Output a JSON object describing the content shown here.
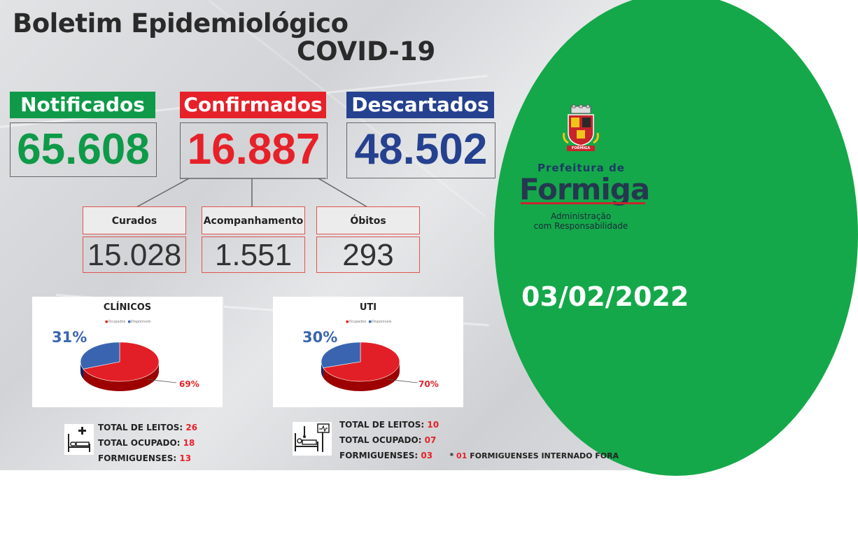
{
  "header": {
    "title_line1": "Boletim Epidemiológico",
    "title_line2": "COVID-19"
  },
  "summary": {
    "notificados": {
      "label": "Notificados",
      "value": "65.608",
      "color": "#0e9a48"
    },
    "confirmados": {
      "label": "Confirmados",
      "value": "16.887",
      "color": "#e62129"
    },
    "descartados": {
      "label": "Descartados",
      "value": "48.502",
      "color": "#25418f"
    }
  },
  "breakdown": {
    "curados": {
      "label": "Curados",
      "value": "15.028"
    },
    "acompanhamento": {
      "label": "Acompanhamento",
      "value": "1.551"
    },
    "obitos": {
      "label": "Óbitos",
      "value": "293"
    }
  },
  "chart_data": [
    {
      "type": "pie",
      "title": "CLÍNICOS",
      "categories": [
        "Ocupados",
        "Disponíveis"
      ],
      "values": [
        69,
        31
      ],
      "labels": [
        "69%",
        "31%"
      ],
      "colors": [
        "#e21f26",
        "#3a64b0"
      ],
      "legend_position": "top"
    },
    {
      "type": "pie",
      "title": "UTI",
      "categories": [
        "Ocupados",
        "Disponíveis"
      ],
      "values": [
        70,
        30
      ],
      "labels": [
        "70%",
        "30%"
      ],
      "colors": [
        "#e21f26",
        "#3a64b0"
      ],
      "legend_position": "top"
    }
  ],
  "clinicos_stats": {
    "total_leitos_label": "TOTAL DE LEITOS:",
    "total_leitos": "26",
    "total_ocupado_label": "TOTAL OCUPADO:",
    "total_ocupado": "18",
    "formiguenses_label": "FORMIGUENSES:",
    "formiguenses": "13"
  },
  "uti_stats": {
    "total_leitos_label": "TOTAL DE LEITOS:",
    "total_leitos": "10",
    "total_ocupado_label": "TOTAL OCUPADO:",
    "total_ocupado": "07",
    "formiguenses_label": "FORMIGUENSES:",
    "formiguenses": "03",
    "note_prefix": "*",
    "note_value": "01",
    "note_text": "FORMIGUENSES INTERNADO FORA"
  },
  "logo": {
    "line1": "Prefeitura de",
    "line2": "Formiga",
    "line3": "Administração",
    "line4": "com Responsabilidade",
    "seal_text": "FORMIGA"
  },
  "date": "03/02/2022",
  "icons": [
    "hospital-bed-icon",
    "icu-bed-icon",
    "coat-of-arms-icon"
  ]
}
